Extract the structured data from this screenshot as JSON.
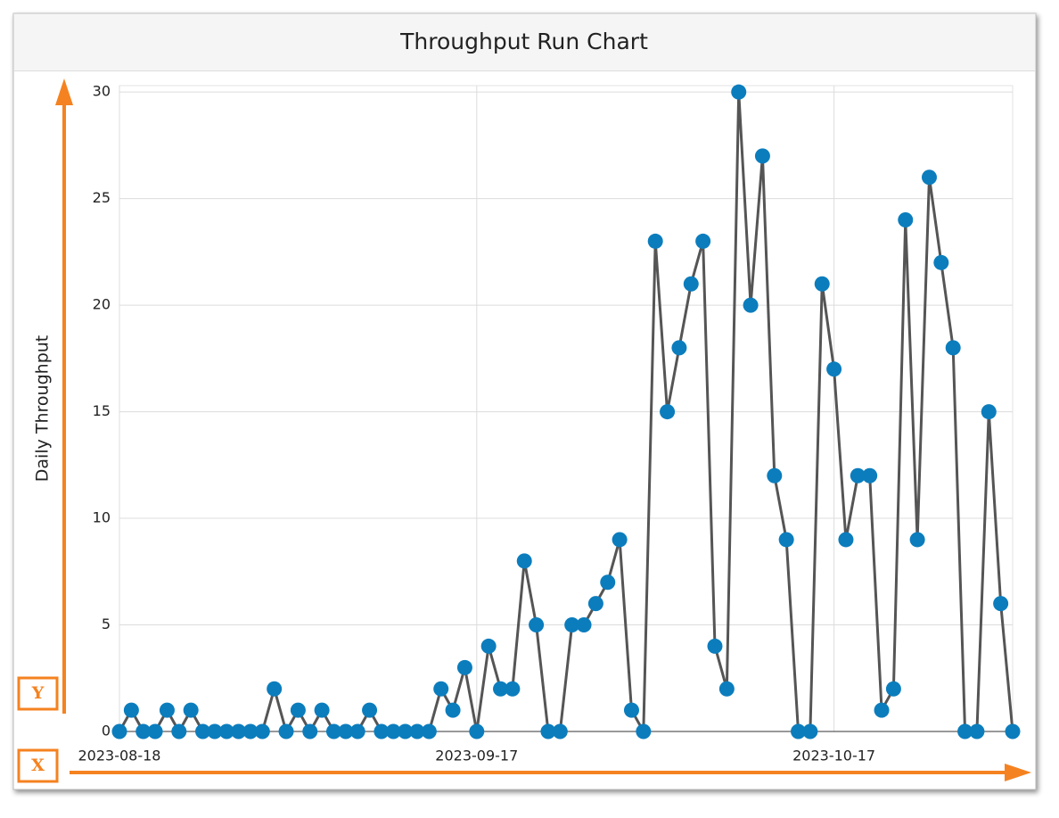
{
  "chart_data": {
    "type": "line",
    "title": "Throughput Run Chart",
    "ylabel": "Daily Throughput",
    "annotations": [
      "Y",
      "X"
    ],
    "x": [
      "2023-08-18",
      "2023-08-19",
      "2023-08-20",
      "2023-08-21",
      "2023-08-22",
      "2023-08-23",
      "2023-08-24",
      "2023-08-25",
      "2023-08-26",
      "2023-08-27",
      "2023-08-28",
      "2023-08-29",
      "2023-08-30",
      "2023-08-31",
      "2023-09-01",
      "2023-09-02",
      "2023-09-03",
      "2023-09-04",
      "2023-09-05",
      "2023-09-06",
      "2023-09-07",
      "2023-09-08",
      "2023-09-09",
      "2023-09-10",
      "2023-09-11",
      "2023-09-12",
      "2023-09-13",
      "2023-09-14",
      "2023-09-15",
      "2023-09-16",
      "2023-09-17",
      "2023-09-18",
      "2023-09-19",
      "2023-09-20",
      "2023-09-21",
      "2023-09-22",
      "2023-09-23",
      "2023-09-24",
      "2023-09-25",
      "2023-09-26",
      "2023-09-27",
      "2023-09-28",
      "2023-09-29",
      "2023-09-30",
      "2023-10-01",
      "2023-10-02",
      "2023-10-03",
      "2023-10-04",
      "2023-10-05",
      "2023-10-06",
      "2023-10-07",
      "2023-10-08",
      "2023-10-09",
      "2023-10-10",
      "2023-10-11",
      "2023-10-12",
      "2023-10-13",
      "2023-10-14",
      "2023-10-15",
      "2023-10-16",
      "2023-10-17",
      "2023-10-18",
      "2023-10-19",
      "2023-10-20",
      "2023-10-21",
      "2023-10-22",
      "2023-10-23",
      "2023-10-24",
      "2023-10-25",
      "2023-10-26",
      "2023-10-27",
      "2023-10-28",
      "2023-10-29",
      "2023-10-30",
      "2023-10-31",
      "2023-11-01"
    ],
    "series": [
      {
        "name": "Daily Throughput",
        "color": "#555555",
        "marker_color": "#0b7dbd",
        "values": [
          0,
          1,
          0,
          0,
          1,
          0,
          1,
          0,
          0,
          0,
          0,
          0,
          0,
          2,
          0,
          1,
          0,
          1,
          0,
          0,
          0,
          1,
          0,
          0,
          0,
          0,
          0,
          2,
          1,
          3,
          0,
          4,
          2,
          2,
          8,
          5,
          0,
          0,
          5,
          5,
          6,
          7,
          9,
          1,
          0,
          23,
          15,
          18,
          21,
          23,
          4,
          2,
          30,
          20,
          27,
          12,
          9,
          0,
          0,
          21,
          17,
          9,
          12,
          12,
          1,
          2,
          24,
          9,
          26,
          22,
          18,
          0,
          0,
          15,
          6,
          0
        ]
      }
    ],
    "xlim": [
      "2023-08-18",
      "2023-11-01"
    ],
    "xticks": [
      "2023-08-18",
      "2023-09-17",
      "2023-10-17"
    ],
    "ylim": [
      0,
      30.3
    ],
    "yticks": [
      0,
      5,
      10,
      15,
      20,
      25,
      30
    ],
    "grid": true
  }
}
